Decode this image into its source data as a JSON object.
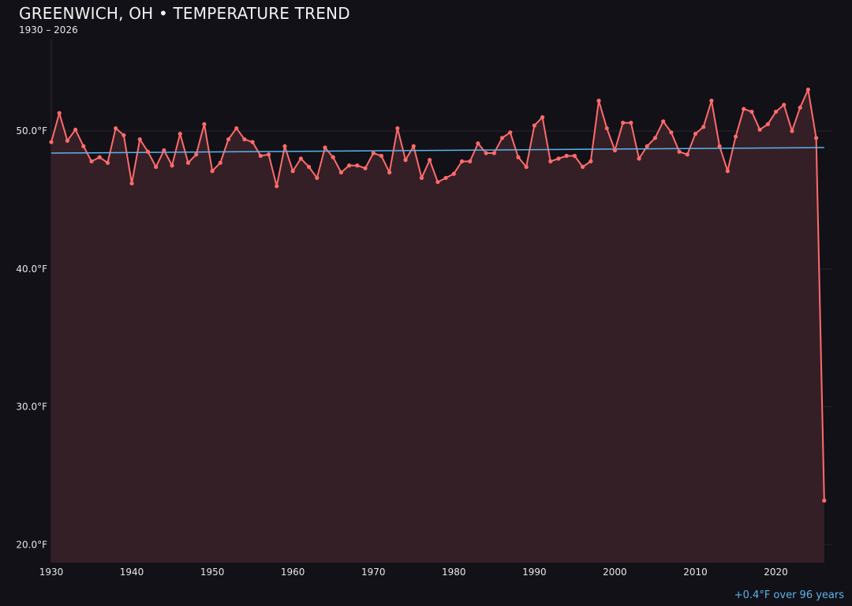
{
  "chart_data": {
    "type": "line",
    "title": "GREENWICH, OH • TEMPERATURE TREND",
    "subtitle": "1930 – 2026",
    "annotation": "+0.4°F over 96 years",
    "xlabel": "",
    "ylabel": "",
    "xlim": [
      1930,
      2027
    ],
    "ylim": [
      18.7,
      57.5
    ],
    "grid": true,
    "x_ticks": [
      1930,
      1940,
      1950,
      1960,
      1970,
      1980,
      1990,
      2000,
      2010,
      2020
    ],
    "y_ticks": [
      20,
      30,
      40,
      50
    ],
    "y_tick_labels": [
      "20.0°F",
      "30.0°F",
      "40.0°F",
      "50.0°F"
    ],
    "colors": {
      "series": "#ff6b6b",
      "fill": "#351f26",
      "trend": "#5bb4ea",
      "background": "#121117"
    },
    "series": [
      {
        "x": [
          1930,
          1931,
          1932,
          1933,
          1934,
          1935,
          1936,
          1937,
          1938,
          1939,
          1940,
          1941,
          1942,
          1943,
          1944,
          1945,
          1946,
          1947,
          1948,
          1949,
          1950,
          1951,
          1952,
          1953,
          1954,
          1955,
          1956,
          1957,
          1958,
          1959,
          1960,
          1961,
          1962,
          1963,
          1964,
          1965,
          1966,
          1967,
          1968,
          1969,
          1970,
          1971,
          1972,
          1973,
          1974,
          1975,
          1976,
          1977,
          1978,
          1979,
          1980,
          1981,
          1982,
          1983,
          1984,
          1985,
          1986,
          1987,
          1988,
          1989,
          1990,
          1991,
          1992,
          1993,
          1994,
          1995,
          1996,
          1997,
          1998,
          1999,
          2000,
          2001,
          2002,
          2003,
          2004,
          2005,
          2006,
          2007,
          2008,
          2009,
          2010,
          2011,
          2012,
          2013,
          2014,
          2015,
          2016,
          2017,
          2018,
          2019,
          2020,
          2021,
          2022,
          2023,
          2024,
          2025,
          2026
        ],
        "values": [
          49.2,
          51.3,
          49.3,
          50.1,
          48.9,
          47.8,
          48.1,
          47.7,
          50.2,
          49.7,
          46.2,
          49.4,
          48.5,
          47.4,
          48.6,
          47.5,
          49.8,
          47.7,
          48.3,
          50.5,
          47.1,
          47.7,
          49.4,
          50.2,
          49.4,
          49.2,
          48.2,
          48.3,
          46.0,
          48.9,
          47.1,
          48.0,
          47.4,
          46.6,
          48.8,
          48.1,
          47.0,
          47.5,
          47.5,
          47.3,
          48.4,
          48.2,
          47.0,
          50.2,
          47.9,
          48.9,
          46.6,
          47.9,
          46.3,
          46.6,
          46.9,
          47.8,
          47.8,
          49.1,
          48.4,
          48.4,
          49.5,
          49.9,
          48.1,
          47.4,
          50.4,
          51.0,
          47.8,
          48.0,
          48.2,
          48.2,
          47.4,
          47.8,
          52.2,
          50.2,
          48.6,
          50.6,
          50.6,
          48.0,
          48.9,
          49.5,
          50.7,
          49.9,
          48.5,
          48.3,
          49.8,
          50.3,
          52.2,
          48.9,
          47.1,
          49.6,
          51.6,
          51.4,
          50.1,
          50.5,
          51.4,
          51.9,
          50.0,
          51.7,
          53.0,
          49.5,
          23.2
        ]
      }
    ],
    "trend": {
      "x": [
        1930,
        2026
      ],
      "values": [
        48.4,
        48.8
      ]
    }
  }
}
